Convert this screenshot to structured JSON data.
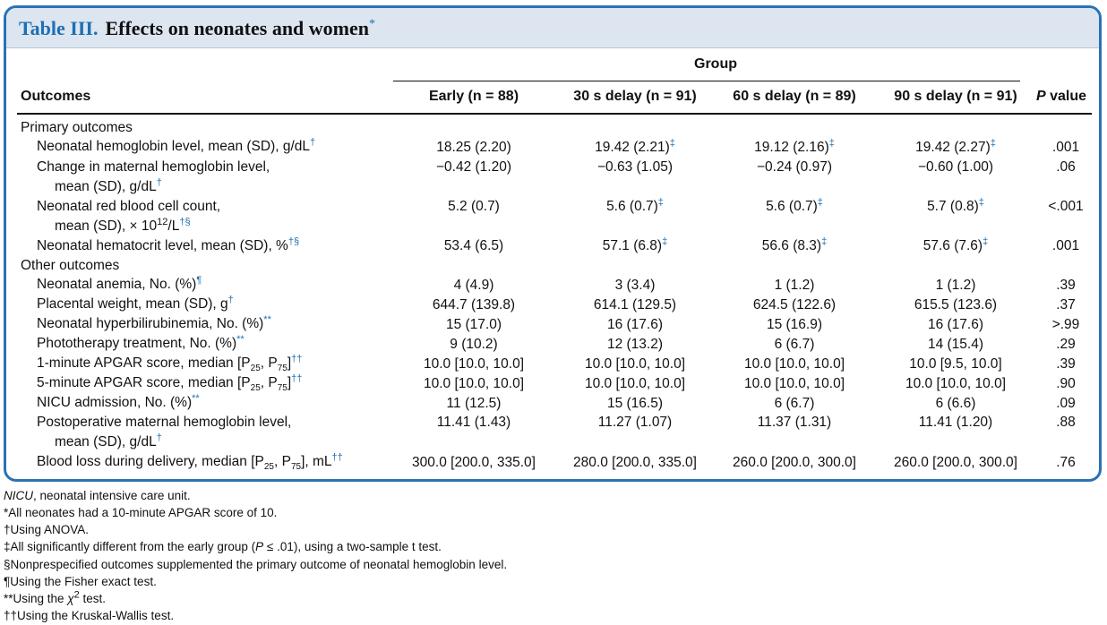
{
  "title": {
    "number": "Table III.",
    "text": "Effects on neonates and women",
    "mark": "*"
  },
  "header": {
    "group": "Group",
    "outcomes": "Outcomes",
    "columns": [
      "Early (n = 88)",
      "30 s delay (n = 91)",
      "60 s delay (n = 89)",
      "90 s delay (n = 91)"
    ],
    "p_prefix": "P",
    "p_suffix": " value"
  },
  "sections": {
    "primary": "Primary outcomes",
    "other": "Other outcomes"
  },
  "rows": [
    {
      "label": "Neonatal hemoglobin level, mean (SD), g/dL",
      "sup": "†",
      "values": [
        "18.25 (2.20)",
        "19.42 (2.21)",
        "19.12 (2.16)",
        "19.42 (2.27)"
      ],
      "vsup": [
        "",
        "‡",
        "‡",
        "‡"
      ],
      "p": ".001"
    },
    {
      "label": "Change in maternal hemoglobin level,",
      "label2": "mean (SD), g/dL",
      "sup": "†",
      "values": [
        "−0.42 (1.20)",
        "−0.63 (1.05)",
        "−0.24 (0.97)",
        "−0.60 (1.00)"
      ],
      "vsup": [
        "",
        "",
        "",
        ""
      ],
      "p": ".06"
    },
    {
      "label": "Neonatal red blood cell count,",
      "label2": "mean (SD), × 10",
      "exp": "12",
      "label3": "/L",
      "sup": "†§",
      "values": [
        "5.2 (0.7)",
        "5.6 (0.7)",
        "5.6 (0.7)",
        "5.7 (0.8)"
      ],
      "vsup": [
        "",
        "‡",
        "‡",
        "‡"
      ],
      "p": "<.001"
    },
    {
      "label": "Neonatal hematocrit level, mean (SD), %",
      "sup": "†§",
      "values": [
        "53.4 (6.5)",
        "57.1 (6.8)",
        "56.6 (8.3)",
        "57.6 (7.6)"
      ],
      "vsup": [
        "",
        "‡",
        "‡",
        "‡"
      ],
      "p": ".001"
    },
    {
      "label": "Neonatal anemia, No. (%)",
      "sup": "¶",
      "values": [
        "4 (4.9)",
        "3 (3.4)",
        "1 (1.2)",
        "1 (1.2)"
      ],
      "vsup": [
        "",
        "",
        "",
        ""
      ],
      "p": ".39"
    },
    {
      "label": "Placental weight, mean (SD), g",
      "sup": "†",
      "values": [
        "644.7 (139.8)",
        "614.1 (129.5)",
        "624.5 (122.6)",
        "615.5 (123.6)"
      ],
      "vsup": [
        "",
        "",
        "",
        ""
      ],
      "p": ".37"
    },
    {
      "label": "Neonatal hyperbilirubinemia, No. (%)",
      "sup": "**",
      "values": [
        "15 (17.0)",
        "16 (17.6)",
        "15 (16.9)",
        "16 (17.6)"
      ],
      "vsup": [
        "",
        "",
        "",
        ""
      ],
      "p": ">.99"
    },
    {
      "label": "Phototherapy treatment, No. (%)",
      "sup": "**",
      "values": [
        "9 (10.2)",
        "12 (13.2)",
        "6 (6.7)",
        "14 (15.4)"
      ],
      "vsup": [
        "",
        "",
        "",
        ""
      ],
      "p": ".29"
    },
    {
      "label": "1-minute APGAR score, median [P",
      "s1": "25",
      "mid": ", P",
      "s2": "75",
      "end": "]",
      "sup": "††",
      "values": [
        "10.0 [10.0, 10.0]",
        "10.0 [10.0, 10.0]",
        "10.0 [10.0, 10.0]",
        "10.0 [9.5, 10.0]"
      ],
      "vsup": [
        "",
        "",
        "",
        ""
      ],
      "p": ".39"
    },
    {
      "label": "5-minute APGAR score, median [P",
      "s1": "25",
      "mid": ", P",
      "s2": "75",
      "end": "]",
      "sup": "††",
      "values": [
        "10.0 [10.0, 10.0]",
        "10.0 [10.0, 10.0]",
        "10.0 [10.0, 10.0]",
        "10.0 [10.0, 10.0]"
      ],
      "vsup": [
        "",
        "",
        "",
        ""
      ],
      "p": ".90"
    },
    {
      "label": "NICU admission, No. (%)",
      "sup": "**",
      "values": [
        "11 (12.5)",
        "15 (16.5)",
        "6 (6.7)",
        "6 (6.6)"
      ],
      "vsup": [
        "",
        "",
        "",
        ""
      ],
      "p": ".09"
    },
    {
      "label": "Postoperative maternal hemoglobin level,",
      "label2": "mean (SD), g/dL",
      "sup": "†",
      "values": [
        "11.41 (1.43)",
        "11.27 (1.07)",
        "11.37 (1.31)",
        "11.41 (1.20)"
      ],
      "vsup": [
        "",
        "",
        "",
        ""
      ],
      "p": ".88"
    },
    {
      "label": "Blood loss during delivery, median [P",
      "s1": "25",
      "mid": ", P",
      "s2": "75",
      "end": "], mL",
      "sup": "††",
      "values": [
        "300.0 [200.0, 335.0]",
        "280.0 [200.0, 335.0]",
        "260.0 [200.0, 300.0]",
        "260.0 [200.0, 300.0]"
      ],
      "vsup": [
        "",
        "",
        "",
        ""
      ],
      "p": ".76"
    }
  ],
  "footnotes": {
    "abbr_term": "NICU",
    "abbr_def": ", neonatal intensive care unit.",
    "star": "*All neonates had a 10-minute APGAR score of 10.",
    "dagger": "†Using ANOVA.",
    "ddagger_a": "‡All significantly different from the early group (",
    "ddagger_p": "P",
    "ddagger_b": " ≤ .01), using a two-sample t test.",
    "section": "§Nonprespecified outcomes supplemented the primary outcome of neonatal hemoglobin level.",
    "pilcrow": "¶Using the Fisher exact test.",
    "dstar_a": "**Using the ",
    "dstar_chi": "χ",
    "dstar_exp": "2",
    "dstar_b": " test.",
    "ddag": "††Using the Kruskal-Wallis test."
  },
  "colors": {
    "frame": "#2a72b4",
    "title_bg": "#dde6f0",
    "accent": "#1e6fb3"
  }
}
